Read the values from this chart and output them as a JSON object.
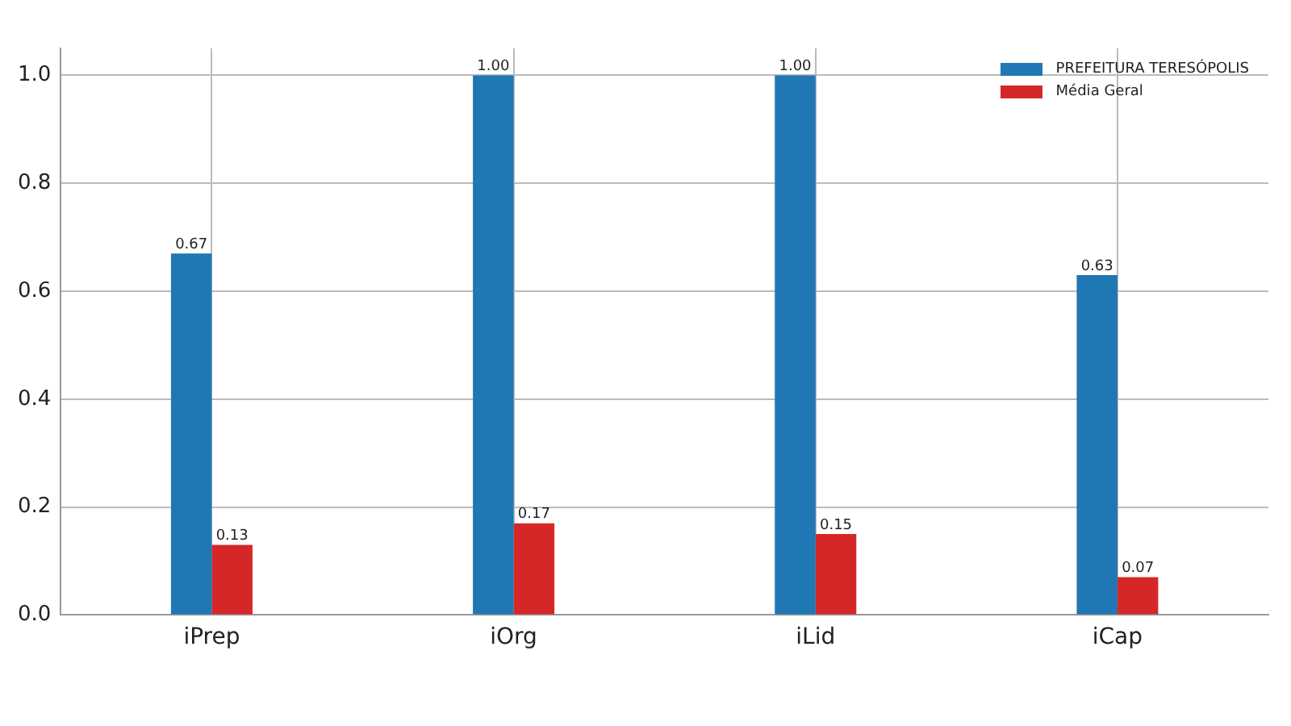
{
  "chart_data": {
    "type": "bar",
    "categories": [
      "iPrep",
      "iOrg",
      "iLid",
      "iCap"
    ],
    "series": [
      {
        "name": "PREFEITURA TERESÓPOLIS",
        "color": "#1f77b4",
        "values": [
          0.67,
          1.0,
          1.0,
          0.63
        ],
        "value_labels": [
          "0.67",
          "1.00",
          "1.00",
          "0.63"
        ]
      },
      {
        "name": "Média Geral",
        "color": "#d62728",
        "values": [
          0.13,
          0.17,
          0.15,
          0.07
        ],
        "value_labels": [
          "0.13",
          "0.17",
          "0.15",
          "0.07"
        ]
      }
    ],
    "ylim": [
      0,
      1.05
    ],
    "yticks": [
      {
        "value": 0,
        "label": "0.0"
      },
      {
        "value": 0.2,
        "label": "0.2"
      },
      {
        "value": 0.4,
        "label": "0.4"
      },
      {
        "value": 0.6,
        "label": "0.6"
      },
      {
        "value": 0.8,
        "label": "0.8"
      },
      {
        "value": 1.0,
        "label": "1.0"
      }
    ],
    "grid": true,
    "legend": "top right"
  }
}
